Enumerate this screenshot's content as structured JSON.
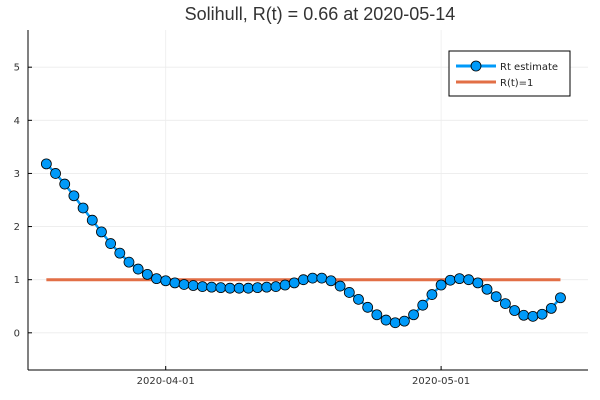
{
  "chart_data": {
    "type": "line",
    "title": "Solihull, R(t) = 0.66 at 2020-05-14",
    "xlabel": "",
    "ylabel": "",
    "x_start": "2020-03-19",
    "x_end": "2020-05-14",
    "xlim": [
      "2020-03-17",
      "2020-05-17"
    ],
    "ylim": [
      -0.7,
      5.7
    ],
    "x_ticks": [
      {
        "date": "2020-04-01",
        "label": "2020-04-01"
      },
      {
        "date": "2020-05-01",
        "label": "2020-05-01"
      }
    ],
    "y_ticks": [
      0,
      1,
      2,
      3,
      4,
      5
    ],
    "grid": true,
    "legend_position": "top-right",
    "series": [
      {
        "name": "Rt estimate",
        "color": "#009AF9",
        "marker": "circle",
        "values": [
          3.18,
          3.0,
          2.8,
          2.58,
          2.35,
          2.12,
          1.9,
          1.68,
          1.5,
          1.33,
          1.2,
          1.1,
          1.02,
          0.98,
          0.94,
          0.91,
          0.89,
          0.87,
          0.86,
          0.85,
          0.84,
          0.84,
          0.84,
          0.85,
          0.86,
          0.87,
          0.9,
          0.94,
          1.0,
          1.03,
          1.03,
          0.98,
          0.88,
          0.76,
          0.63,
          0.48,
          0.34,
          0.24,
          0.19,
          0.22,
          0.34,
          0.52,
          0.72,
          0.9,
          0.99,
          1.02,
          1.0,
          0.94,
          0.82,
          0.68,
          0.55,
          0.42,
          0.33,
          0.31,
          0.35,
          0.46,
          0.66
        ]
      },
      {
        "name": "R(t)=1",
        "color": "#E26F46",
        "marker": "none",
        "values": [
          1,
          1
        ]
      }
    ]
  }
}
